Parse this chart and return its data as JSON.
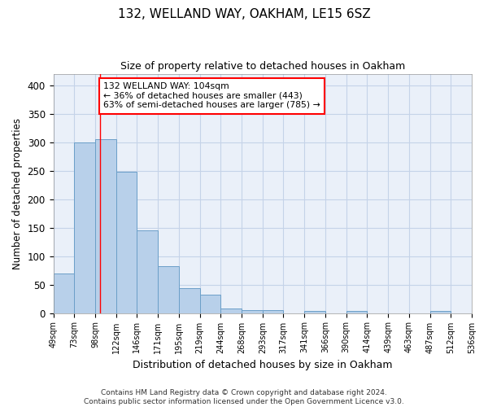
{
  "title1": "132, WELLAND WAY, OAKHAM, LE15 6SZ",
  "title2": "Size of property relative to detached houses in Oakham",
  "xlabel": "Distribution of detached houses by size in Oakham",
  "ylabel": "Number of detached properties",
  "bar_labels": [
    "49sqm",
    "73sqm",
    "98sqm",
    "122sqm",
    "146sqm",
    "171sqm",
    "195sqm",
    "219sqm",
    "244sqm",
    "268sqm",
    "293sqm",
    "317sqm",
    "341sqm",
    "366sqm",
    "390sqm",
    "414sqm",
    "439sqm",
    "463sqm",
    "487sqm",
    "512sqm",
    "536sqm"
  ],
  "final_heights": [
    70,
    300,
    305,
    248,
    145,
    82,
    44,
    32,
    8,
    5,
    5,
    0,
    3,
    0,
    3,
    0,
    0,
    0,
    3,
    0
  ],
  "bar_color": "#b8d0ea",
  "bar_edge_color": "#6b9fc8",
  "annotation_text": "132 WELLAND WAY: 104sqm\n← 36% of detached houses are smaller (443)\n63% of semi-detached houses are larger (785) →",
  "annotation_box_color": "white",
  "annotation_border_color": "red",
  "vline_color": "red",
  "footer": "Contains HM Land Registry data © Crown copyright and database right 2024.\nContains public sector information licensed under the Open Government Licence v3.0.",
  "ylim": [
    0,
    420
  ],
  "yticks": [
    0,
    50,
    100,
    150,
    200,
    250,
    300,
    350,
    400
  ],
  "background_color": "#eaf0f9",
  "grid_color": "#c5d3e8",
  "fig_width": 6.0,
  "fig_height": 5.0,
  "dpi": 100
}
